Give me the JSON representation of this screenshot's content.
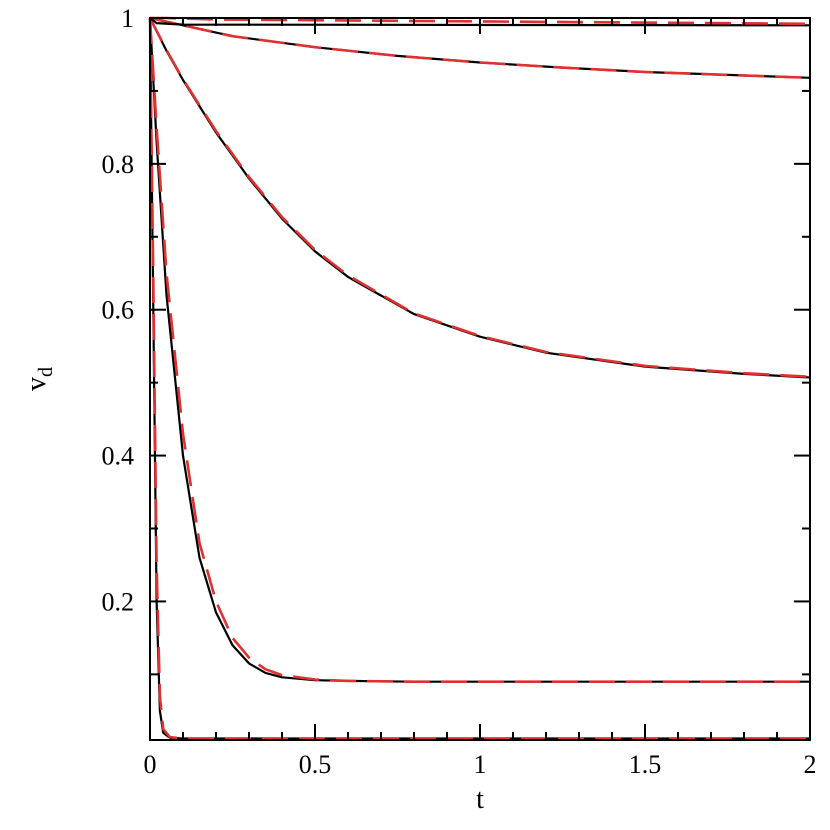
{
  "chart_data": {
    "type": "line",
    "xlabel": "t",
    "ylabel": "v",
    "ylabel_subscript": "d",
    "xlim": [
      0,
      2
    ],
    "ylim": [
      0.01,
      1
    ],
    "x_ticks": [
      {
        "value": 0,
        "label": "0"
      },
      {
        "value": 0.5,
        "label": "0.5"
      },
      {
        "value": 1,
        "label": "1"
      },
      {
        "value": 1.5,
        "label": "1.5"
      },
      {
        "value": 2,
        "label": "2"
      }
    ],
    "y_ticks": [
      {
        "value": 0.2,
        "label": "0.2"
      },
      {
        "value": 0.4,
        "label": "0.4"
      },
      {
        "value": 0.6,
        "label": "0.6"
      },
      {
        "value": 0.8,
        "label": "0.8"
      },
      {
        "value": 1,
        "label": "1"
      }
    ],
    "grid": false,
    "colors": {
      "solid": "#000000",
      "dashed": "#e03030"
    },
    "series": [
      {
        "style": "solid",
        "color": "#000000",
        "x": [
          0,
          0.01,
          0.02,
          0.03,
          0.04,
          0.06,
          0.1,
          2
        ],
        "y": [
          1,
          0.6,
          0.2,
          0.05,
          0.02,
          0.013,
          0.012,
          0.012
        ]
      },
      {
        "style": "dashed",
        "color": "#e03030",
        "x": [
          0,
          0.01,
          0.02,
          0.03,
          0.04,
          0.06,
          0.1,
          2
        ],
        "y": [
          1,
          0.64,
          0.25,
          0.07,
          0.025,
          0.014,
          0.012,
          0.012
        ]
      },
      {
        "style": "solid",
        "color": "#000000",
        "x": [
          0,
          0.02,
          0.05,
          0.1,
          0.15,
          0.2,
          0.25,
          0.3,
          0.35,
          0.4,
          0.5,
          0.6,
          0.8,
          1,
          1.5,
          2
        ],
        "y": [
          1,
          0.83,
          0.62,
          0.4,
          0.26,
          0.185,
          0.14,
          0.115,
          0.102,
          0.096,
          0.092,
          0.091,
          0.09,
          0.09,
          0.09,
          0.09
        ]
      },
      {
        "style": "dashed",
        "color": "#e03030",
        "x": [
          0,
          0.02,
          0.05,
          0.1,
          0.15,
          0.2,
          0.25,
          0.3,
          0.35,
          0.4,
          0.5,
          0.6,
          0.8,
          1,
          1.5,
          2
        ],
        "y": [
          1,
          0.85,
          0.65,
          0.43,
          0.28,
          0.2,
          0.15,
          0.123,
          0.107,
          0.099,
          0.093,
          0.091,
          0.09,
          0.09,
          0.09,
          0.09
        ]
      },
      {
        "style": "solid",
        "color": "#000000",
        "x": [
          0,
          0.05,
          0.1,
          0.2,
          0.3,
          0.4,
          0.5,
          0.6,
          0.8,
          1,
          1.2,
          1.5,
          1.8,
          2
        ],
        "y": [
          1,
          0.955,
          0.915,
          0.843,
          0.78,
          0.725,
          0.68,
          0.645,
          0.594,
          0.563,
          0.541,
          0.522,
          0.512,
          0.507
        ]
      },
      {
        "style": "dashed",
        "color": "#e03030",
        "x": [
          0,
          0.05,
          0.1,
          0.2,
          0.3,
          0.4,
          0.5,
          0.6,
          0.8,
          1,
          1.2,
          1.5,
          1.8,
          2
        ],
        "y": [
          1,
          0.956,
          0.916,
          0.845,
          0.782,
          0.727,
          0.682,
          0.647,
          0.595,
          0.564,
          0.542,
          0.523,
          0.513,
          0.508
        ]
      },
      {
        "style": "solid",
        "color": "#000000",
        "x": [
          0,
          0.1,
          0.25,
          0.5,
          0.75,
          1,
          1.25,
          1.5,
          1.75,
          2
        ],
        "y": [
          1,
          0.99,
          0.975,
          0.96,
          0.948,
          0.939,
          0.932,
          0.926,
          0.922,
          0.918
        ]
      },
      {
        "style": "dashed",
        "color": "#e03030",
        "x": [
          0,
          0.1,
          0.25,
          0.5,
          0.75,
          1,
          1.25,
          1.5,
          1.75,
          2
        ],
        "y": [
          1,
          0.99,
          0.975,
          0.96,
          0.948,
          0.939,
          0.932,
          0.926,
          0.922,
          0.918
        ]
      },
      {
        "style": "solid",
        "color": "#000000",
        "x": [
          0,
          0.02,
          0.1,
          2
        ],
        "y": [
          1,
          0.993,
          0.991,
          0.99
        ]
      },
      {
        "style": "dashed",
        "color": "#e03030",
        "x": [
          0,
          0.05,
          0.2,
          2
        ],
        "y": [
          1,
          1,
          0.998,
          0.992
        ]
      }
    ]
  }
}
